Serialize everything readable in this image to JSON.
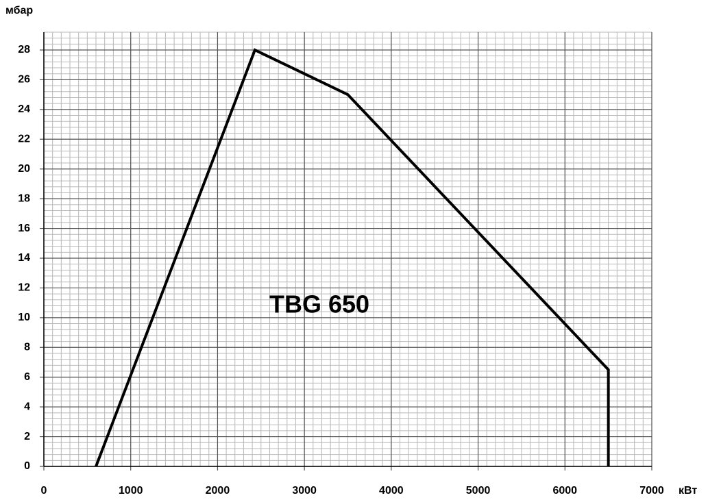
{
  "chart_data": {
    "type": "line",
    "y_label": "мбар",
    "x_label": "кВт",
    "annotation": "TBG 650",
    "x": [
      600,
      2430,
      3500,
      6500,
      6500
    ],
    "series": [
      {
        "values": [
          0,
          28,
          25,
          6.5,
          0
        ],
        "color": "#000000"
      }
    ],
    "xlim": [
      0,
      7000
    ],
    "xticks": [
      0,
      1000,
      2000,
      3000,
      4000,
      5000,
      6000,
      7000
    ],
    "ylim": [
      0,
      29.2
    ],
    "yticks": [
      0,
      2,
      4,
      6,
      8,
      10,
      12,
      14,
      16,
      18,
      20,
      22,
      24,
      26,
      28
    ],
    "grid": true
  }
}
